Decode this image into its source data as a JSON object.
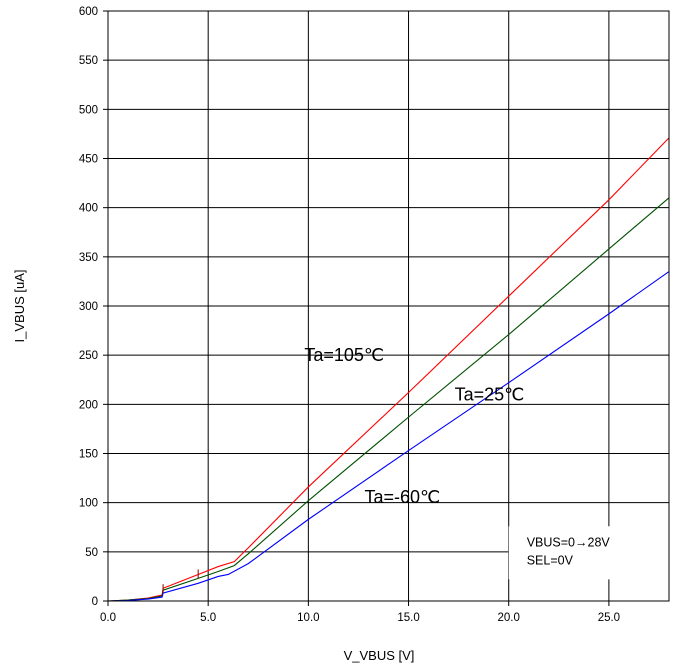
{
  "chart_data": {
    "type": "line",
    "title": "",
    "xlabel": "V_VBUS [V]",
    "ylabel": "I_VBUS [uA]",
    "xlim": [
      0,
      28
    ],
    "ylim": [
      0,
      600
    ],
    "xticks": [
      0,
      5,
      10,
      15,
      20,
      25
    ],
    "xtick_labels": [
      "0.0",
      "5.0",
      "10.0",
      "15.0",
      "20.0",
      "25.0"
    ],
    "yticks": [
      0,
      50,
      100,
      150,
      200,
      250,
      300,
      350,
      400,
      450,
      500,
      550,
      600
    ],
    "ytick_labels": [
      "0",
      "50",
      "100",
      "150",
      "200",
      "250",
      "300",
      "350",
      "400",
      "450",
      "500",
      "550",
      "600"
    ],
    "grid": true,
    "series": [
      {
        "color": "#ff0000",
        "points": [
          [
            0,
            0
          ],
          [
            1,
            1
          ],
          [
            2,
            3
          ],
          [
            2.7,
            6
          ],
          [
            2.75,
            13
          ],
          [
            4.5,
            27
          ],
          [
            5.5,
            35
          ],
          [
            6.3,
            40
          ],
          [
            7,
            54
          ],
          [
            10,
            116
          ],
          [
            15,
            212
          ],
          [
            20,
            310
          ],
          [
            25,
            408
          ],
          [
            28,
            471
          ]
        ]
      },
      {
        "color": "#005000",
        "points": [
          [
            0,
            0
          ],
          [
            1,
            1
          ],
          [
            2,
            2.5
          ],
          [
            2.7,
            5
          ],
          [
            2.75,
            11
          ],
          [
            4.5,
            23
          ],
          [
            5.5,
            30
          ],
          [
            6.3,
            36
          ],
          [
            7,
            48
          ],
          [
            10,
            102
          ],
          [
            15,
            187
          ],
          [
            20,
            271
          ],
          [
            25,
            358
          ],
          [
            28,
            410
          ]
        ]
      },
      {
        "color": "#0000ff",
        "points": [
          [
            0,
            0
          ],
          [
            1,
            0.5
          ],
          [
            2,
            2
          ],
          [
            2.7,
            4
          ],
          [
            2.75,
            8
          ],
          [
            4.5,
            18
          ],
          [
            5.5,
            25
          ],
          [
            6,
            27
          ],
          [
            7,
            38
          ],
          [
            10,
            83
          ],
          [
            15,
            153
          ],
          [
            20,
            222
          ],
          [
            25,
            292
          ],
          [
            28,
            335
          ]
        ]
      }
    ],
    "annotations": [
      {
        "text": "Ta=105℃",
        "x": 9.8,
        "y": 250
      },
      {
        "text": "Ta=25℃",
        "x": 17.3,
        "y": 210
      },
      {
        "text": "Ta=-60℃",
        "x": 12.8,
        "y": 106
      }
    ],
    "condition_box": {
      "lines": [
        "VBUS=0→28V",
        "SEL=0V"
      ],
      "x_range": [
        20,
        28
      ],
      "y_range": [
        22,
        76
      ]
    }
  }
}
